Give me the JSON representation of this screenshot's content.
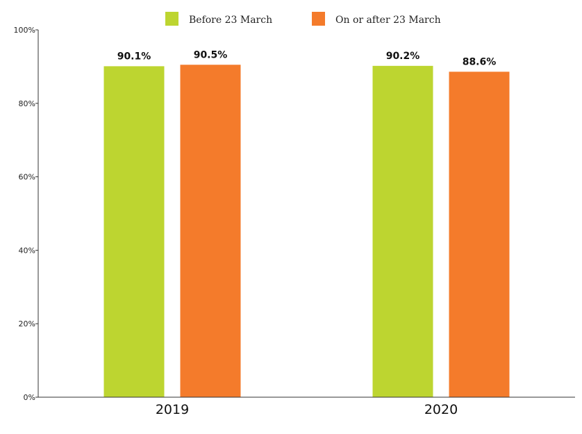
{
  "chart_data": {
    "type": "bar",
    "categories": [
      "2019",
      "2020"
    ],
    "series": [
      {
        "name": "Before 23 March",
        "values": [
          90.1,
          90.2
        ],
        "labels": [
          "90.1%",
          "90.2%"
        ],
        "color": "#bdd530"
      },
      {
        "name": "On or after 23 March",
        "values": [
          90.5,
          88.6
        ],
        "labels": [
          "90.5%",
          "88.6%"
        ],
        "color": "#f47b2b"
      }
    ],
    "y_ticks": [
      0,
      20,
      40,
      60,
      80,
      100
    ],
    "y_tick_labels": [
      "0%",
      "20%",
      "40%",
      "60%",
      "80%",
      "100%"
    ],
    "ylim": [
      0,
      100
    ],
    "grid": false,
    "legend_position": "top-center"
  }
}
